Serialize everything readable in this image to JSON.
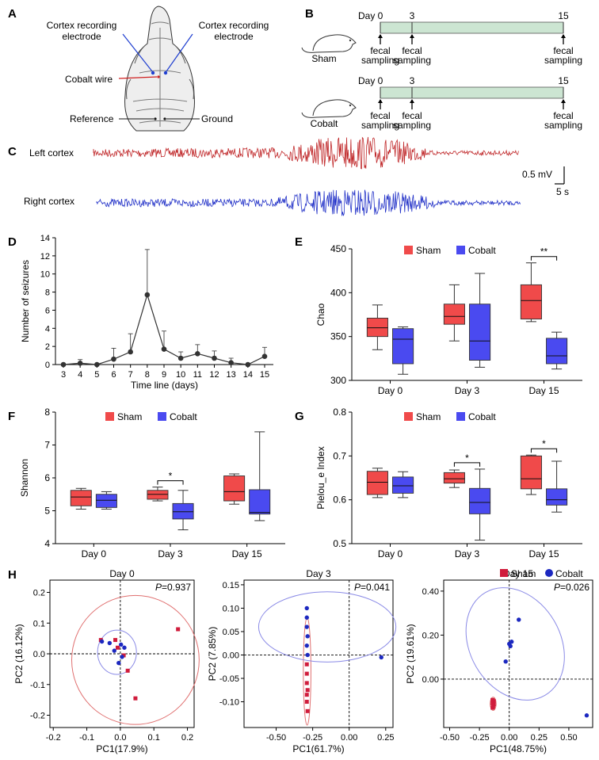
{
  "panel_labels": {
    "A": "A",
    "B": "B",
    "C": "C",
    "D": "D",
    "E": "E",
    "F": "F",
    "G": "G",
    "H": "H"
  },
  "panel_a": {
    "left_electrode": [
      "Cortex recording",
      "electrode"
    ],
    "right_electrode": [
      "Cortex recording",
      "electrode"
    ],
    "cobalt_wire": "Cobalt wire",
    "reference": "Reference",
    "ground": "Ground"
  },
  "panel_b": {
    "day_prefix": "Day",
    "days": [
      "0",
      "3",
      "15"
    ],
    "sampling": [
      "fecal",
      "sampling"
    ],
    "groups": [
      "Sham",
      "Cobalt"
    ],
    "bar_color": "#cce5d2"
  },
  "panel_c": {
    "left_label": "Left cortex",
    "right_label": "Right cortex",
    "scale_mv": "0.5 mV",
    "scale_s": "5 s",
    "left_color": "#c0282a",
    "right_color": "#2433c8"
  },
  "legend": {
    "sham": "Sham",
    "cobalt": "Cobalt"
  },
  "colors": {
    "sham": "#f04a4a",
    "cobalt": "#4a4af0",
    "sham_dot": "#d01c3c",
    "cobalt_dot": "#1c28c0"
  },
  "chart_data": [
    {
      "panel": "D",
      "type": "line",
      "title": "",
      "xlabel": "Time line (days)",
      "ylabel": "Number of seizures",
      "x": [
        3,
        4,
        5,
        6,
        7,
        8,
        9,
        10,
        11,
        12,
        13,
        14,
        15
      ],
      "values": [
        0,
        0.15,
        0,
        0.6,
        1.4,
        7.7,
        1.7,
        0.7,
        1.2,
        0.7,
        0.2,
        0,
        0.9
      ],
      "error": [
        0,
        0.4,
        0,
        1.2,
        2.0,
        5.0,
        2.0,
        0.7,
        1.0,
        0.8,
        0.5,
        0,
        1.0
      ],
      "ylim": [
        0,
        14
      ],
      "yticks": [
        "0",
        "2",
        "4",
        "6",
        "8",
        "10",
        "12",
        "14"
      ]
    },
    {
      "panel": "E",
      "type": "boxplot",
      "ylabel": "Chao",
      "categories": [
        "Day 0",
        "Day 3",
        "Day 15"
      ],
      "ylim": [
        300,
        450
      ],
      "yticks": [
        "300",
        "350",
        "400",
        "450"
      ],
      "series": [
        {
          "name": "Sham",
          "boxes": [
            {
              "min": 335,
              "q1": 350,
              "median": 360,
              "q3": 371,
              "max": 386
            },
            {
              "min": 345,
              "q1": 364,
              "median": 373,
              "q3": 387,
              "max": 409
            },
            {
              "min": 367,
              "q1": 370,
              "median": 391,
              "q3": 409,
              "max": 434
            }
          ]
        },
        {
          "name": "Cobalt",
          "boxes": [
            {
              "min": 307,
              "q1": 319,
              "median": 347,
              "q3": 359,
              "max": 361
            },
            {
              "min": 315,
              "q1": 323,
              "median": 345,
              "q3": 387,
              "max": 422
            },
            {
              "min": 313,
              "q1": 319,
              "median": 328,
              "q3": 348,
              "max": 355
            }
          ]
        }
      ],
      "significance": [
        {
          "category": "Day 15",
          "label": "**"
        }
      ]
    },
    {
      "panel": "F",
      "type": "boxplot",
      "ylabel": "Shannon",
      "categories": [
        "Day 0",
        "Day 3",
        "Day 15"
      ],
      "ylim": [
        4,
        8
      ],
      "yticks": [
        "4",
        "5",
        "6",
        "7",
        "8"
      ],
      "series": [
        {
          "name": "Sham",
          "boxes": [
            {
              "min": 5.05,
              "q1": 5.15,
              "median": 5.42,
              "q3": 5.62,
              "max": 5.68
            },
            {
              "min": 5.3,
              "q1": 5.35,
              "median": 5.5,
              "q3": 5.62,
              "max": 5.72
            },
            {
              "min": 5.2,
              "q1": 5.3,
              "median": 5.58,
              "q3": 6.06,
              "max": 6.12
            }
          ]
        },
        {
          "name": "Cobalt",
          "boxes": [
            {
              "min": 5.05,
              "q1": 5.1,
              "median": 5.32,
              "q3": 5.5,
              "max": 5.58
            },
            {
              "min": 4.42,
              "q1": 4.75,
              "median": 4.97,
              "q3": 5.22,
              "max": 5.62
            },
            {
              "min": 4.7,
              "q1": 4.9,
              "median": 4.95,
              "q3": 5.64,
              "max": 7.4
            }
          ]
        }
      ],
      "significance": [
        {
          "category": "Day 3",
          "label": "*"
        }
      ]
    },
    {
      "panel": "G",
      "type": "boxplot",
      "ylabel": "Pielou_e Index",
      "categories": [
        "Day 0",
        "Day 3",
        "Day 15"
      ],
      "ylim": [
        0.5,
        0.8
      ],
      "yticks": [
        "0.5",
        "0.6",
        "0.7",
        "0.8"
      ],
      "series": [
        {
          "name": "Sham",
          "boxes": [
            {
              "min": 0.605,
              "q1": 0.612,
              "median": 0.64,
              "q3": 0.665,
              "max": 0.672
            },
            {
              "min": 0.628,
              "q1": 0.638,
              "median": 0.648,
              "q3": 0.662,
              "max": 0.668
            },
            {
              "min": 0.612,
              "q1": 0.625,
              "median": 0.648,
              "q3": 0.7,
              "max": 0.702
            }
          ]
        },
        {
          "name": "Cobalt",
          "boxes": [
            {
              "min": 0.605,
              "q1": 0.615,
              "median": 0.632,
              "q3": 0.652,
              "max": 0.664
            },
            {
              "min": 0.508,
              "q1": 0.568,
              "median": 0.594,
              "q3": 0.626,
              "max": 0.67
            },
            {
              "min": 0.572,
              "q1": 0.588,
              "median": 0.6,
              "q3": 0.625,
              "max": 0.688
            }
          ]
        }
      ],
      "significance": [
        {
          "category": "Day 3",
          "label": "*"
        },
        {
          "category": "Day 15",
          "label": "*"
        }
      ]
    },
    {
      "panel": "H-Day0",
      "type": "scatter",
      "title": "Day 0",
      "pvalue": "=0.937",
      "xlabel": "PC1(17.9%)",
      "ylabel": "PC2 (16.12%)",
      "xlim": [
        -0.21,
        0.22
      ],
      "ylim": [
        -0.24,
        0.24
      ],
      "xticks": [
        "-0.2",
        "-0.1",
        "0.0",
        "0.1",
        "0.2"
      ],
      "yticks": [
        "-0.2",
        "-0.1",
        "0.0",
        "0.1",
        "0.2"
      ],
      "series": [
        {
          "name": "Sham",
          "points": [
            [
              -0.058,
              0.045
            ],
            [
              -0.015,
              0.045
            ],
            [
              -0.008,
              0.02
            ],
            [
              0.01,
              -0.005
            ],
            [
              0.022,
              -0.055
            ],
            [
              0.045,
              -0.145
            ],
            [
              0.172,
              0.08
            ]
          ]
        },
        {
          "name": "Cobalt",
          "points": [
            [
              -0.055,
              0.04
            ],
            [
              -0.032,
              0.035
            ],
            [
              -0.018,
              0.01
            ],
            [
              0.002,
              0.03
            ],
            [
              0.005,
              -0.01
            ],
            [
              0.012,
              0.02
            ],
            [
              -0.005,
              -0.03
            ]
          ]
        }
      ],
      "ellipses": [
        {
          "name": "Sham",
          "cx": 0.045,
          "cy": -0.02,
          "rx": 0.19,
          "ry": 0.21
        },
        {
          "name": "Cobalt",
          "cx": -0.01,
          "cy": 0.005,
          "rx": 0.058,
          "ry": 0.072
        }
      ]
    },
    {
      "panel": "H-Day3",
      "type": "scatter",
      "title": "Day 3",
      "pvalue": "=0.041",
      "xlabel": "PC1(61.7%)",
      "ylabel": "PC2 (7.85%)",
      "xlim": [
        -0.72,
        0.3
      ],
      "ylim": [
        -0.155,
        0.16
      ],
      "xticks": [
        "-0.50",
        "-0.25",
        "0.00",
        "0.25"
      ],
      "yticks": [
        "-0.10",
        "-0.05",
        "0.00",
        "0.05",
        "0.10",
        "0.15"
      ],
      "series": [
        {
          "name": "Sham",
          "points": [
            [
              -0.29,
              -0.02
            ],
            [
              -0.29,
              -0.04
            ],
            [
              -0.29,
              -0.06
            ],
            [
              -0.285,
              -0.075
            ],
            [
              -0.29,
              -0.085
            ],
            [
              -0.29,
              -0.1
            ],
            [
              -0.285,
              -0.12
            ]
          ]
        },
        {
          "name": "Cobalt",
          "points": [
            [
              -0.29,
              0.1
            ],
            [
              -0.29,
              0.08
            ],
            [
              -0.29,
              0.06
            ],
            [
              -0.285,
              0.04
            ],
            [
              -0.29,
              0.02
            ],
            [
              -0.285,
              0.0
            ],
            [
              0.22,
              -0.005
            ]
          ]
        }
      ],
      "ellipses": [
        {
          "name": "Sham",
          "cx": -0.288,
          "cy": -0.035,
          "rx": 0.026,
          "ry": 0.115
        },
        {
          "name": "Cobalt",
          "cx": -0.15,
          "cy": 0.06,
          "rx": 0.47,
          "ry": 0.075
        }
      ]
    },
    {
      "panel": "H-Day15",
      "type": "scatter",
      "title": "Day 15",
      "pvalue": "=0.026",
      "xlabel": "PC1(48.75%)",
      "ylabel": "PC2 (19.61%)",
      "xlim": [
        -0.55,
        0.7
      ],
      "ylim": [
        -0.22,
        0.45
      ],
      "xticks": [
        "-0.50",
        "-0.25",
        "0.00",
        "0.25",
        "0.50"
      ],
      "yticks": [
        "0.00",
        "0.20",
        "0.40"
      ],
      "series": [
        {
          "name": "Sham",
          "points": [
            [
              -0.14,
              -0.095
            ],
            [
              -0.13,
              -0.1
            ],
            [
              -0.14,
              -0.11
            ],
            [
              -0.13,
              -0.115
            ],
            [
              -0.135,
              -0.125
            ],
            [
              -0.14,
              -0.13
            ]
          ]
        },
        {
          "name": "Cobalt",
          "points": [
            [
              -0.03,
              0.08
            ],
            [
              0.0,
              0.16
            ],
            [
              0.02,
              0.17
            ],
            [
              0.01,
              0.15
            ],
            [
              0.08,
              0.27
            ],
            [
              0.65,
              -0.165
            ]
          ]
        }
      ],
      "ellipses": [
        {
          "name": "Sham",
          "cx": -0.135,
          "cy": -0.112,
          "rx": 0.025,
          "ry": 0.03
        },
        {
          "name": "Cobalt",
          "cx": 0.05,
          "cy": 0.16,
          "rx": 0.38,
          "ry": 0.27,
          "rotate": -30
        }
      ]
    }
  ]
}
